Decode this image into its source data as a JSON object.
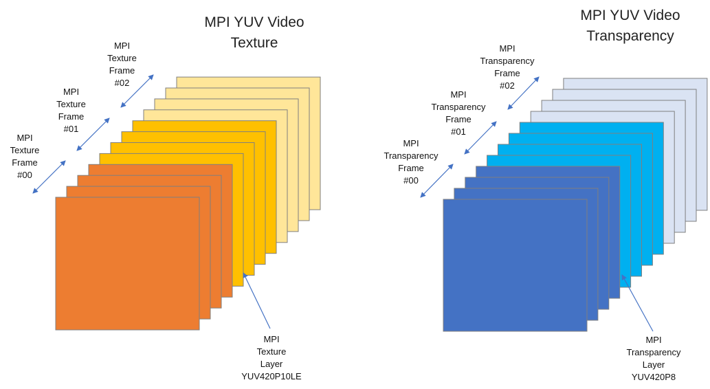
{
  "texture_panel": {
    "title": [
      "MPI YUV Video",
      "Texture"
    ],
    "frame_labels": [
      [
        "MPI",
        "Texture",
        "Frame",
        "#02"
      ],
      [
        "MPI",
        "Texture",
        "Frame",
        "#01"
      ],
      [
        "MPI",
        "Texture",
        "Frame",
        "#00"
      ]
    ],
    "layer_label": [
      "MPI",
      "Texture",
      "Layer",
      "YUV420P10LE"
    ],
    "colors": {
      "frame00": "#ED7D31",
      "frame01": "#FFC000",
      "frame02": "#FFE699",
      "border": "#7f7f7f",
      "arrow": "#4472C4"
    }
  },
  "transparency_panel": {
    "title": [
      "MPI YUV Video",
      "Transparency"
    ],
    "frame_labels": [
      [
        "MPI",
        "Transparency",
        "Frame",
        "#02"
      ],
      [
        "MPI",
        "Transparency",
        "Frame",
        "#01"
      ],
      [
        "MPI",
        "Transparency",
        "Frame",
        "#00"
      ]
    ],
    "layer_label": [
      "MPI",
      "Transparency",
      "Layer",
      "YUV420P8"
    ],
    "colors": {
      "frame00": "#4472C4",
      "frame01": "#00B0F0",
      "frame02": "#DAE3F3",
      "border": "#7f7f7f",
      "arrow": "#4472C4"
    }
  }
}
